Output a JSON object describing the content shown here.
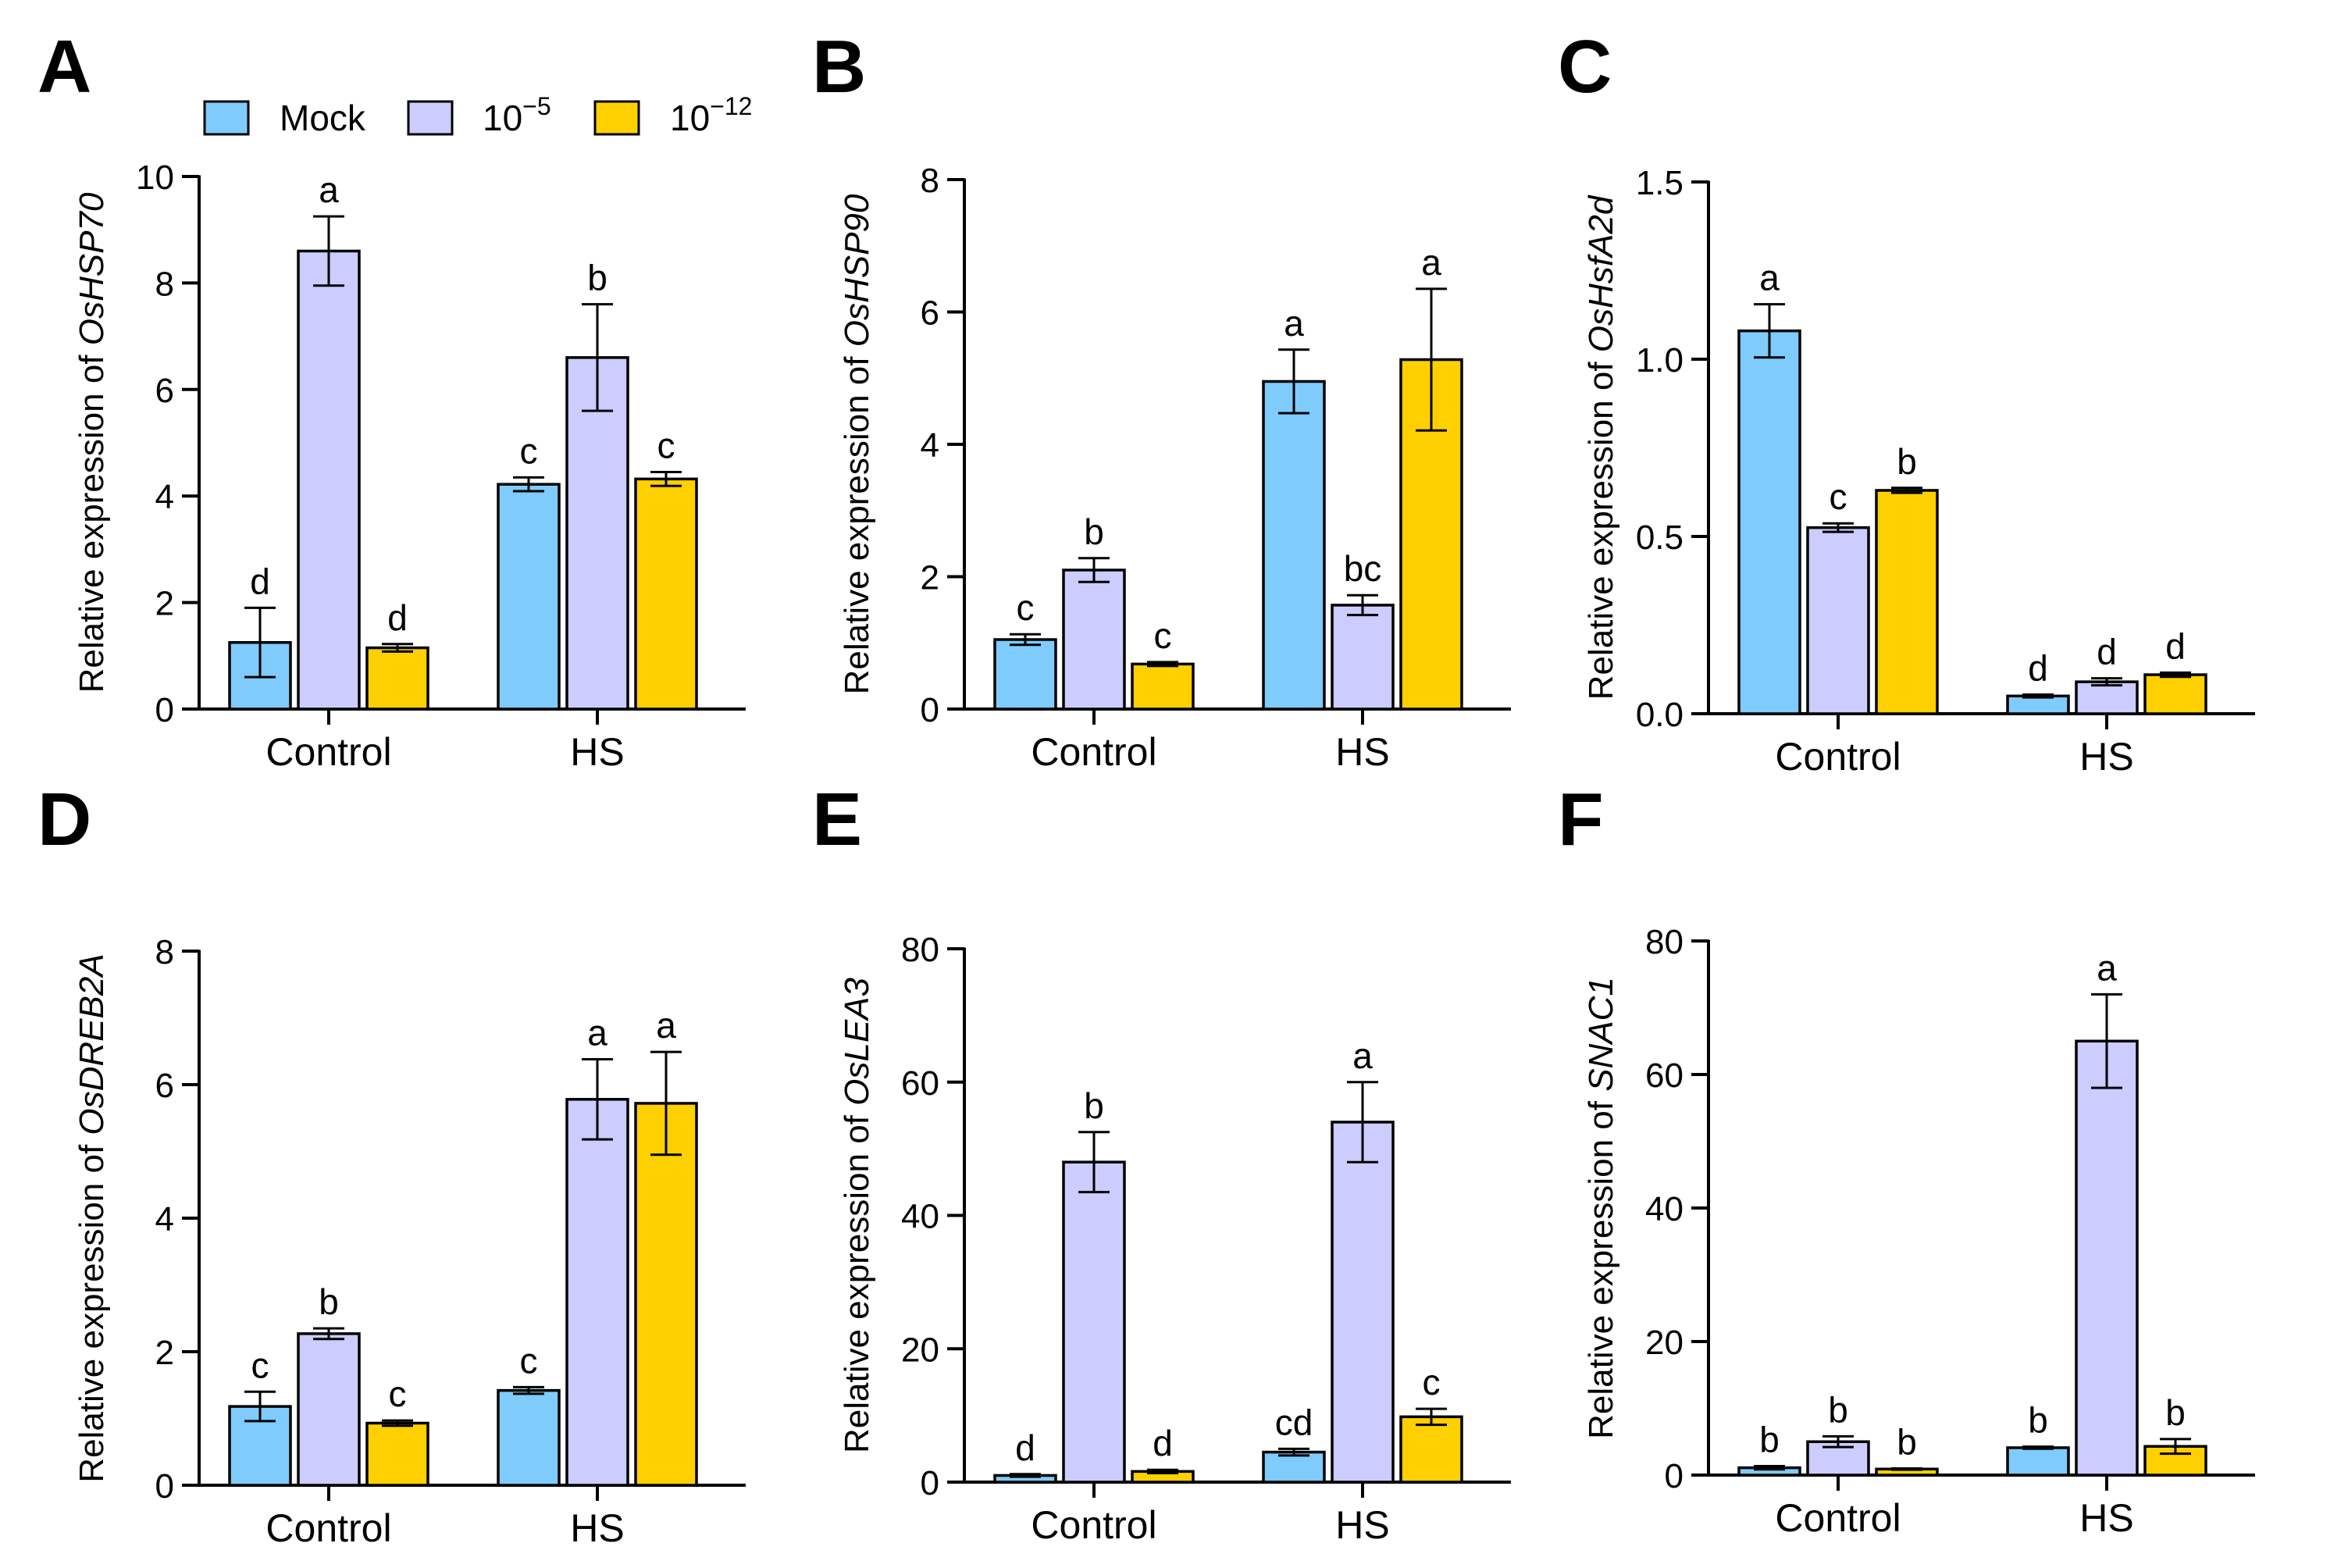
{
  "legend": {
    "items": [
      {
        "label": "Mock",
        "color": "#7FCBFB"
      },
      {
        "label": "10",
        "sup": "−5",
        "color": "#CCCCFF"
      },
      {
        "label": "10",
        "sup": "−12",
        "color": "#FFD000"
      }
    ]
  },
  "chart_data": [
    {
      "panel": "A",
      "type": "bar",
      "ylabel_prefix": "Relative expression of ",
      "gene": "OsHSP70",
      "categories": [
        "Control",
        "HS"
      ],
      "ylim": [
        0,
        10
      ],
      "yticks": [
        "0",
        "2",
        "4",
        "6",
        "8",
        "10"
      ],
      "series": [
        {
          "name": "Mock",
          "values": [
            1.25,
            4.22
          ],
          "errors": [
            0.65,
            0.13
          ],
          "letters": [
            "d",
            "c"
          ]
        },
        {
          "name": "10^-5",
          "values": [
            8.6,
            6.6
          ],
          "errors": [
            0.65,
            1.0
          ],
          "letters": [
            "a",
            "b"
          ]
        },
        {
          "name": "10^-12",
          "values": [
            1.15,
            4.32
          ],
          "errors": [
            0.07,
            0.13
          ],
          "letters": [
            "d",
            "c"
          ]
        }
      ]
    },
    {
      "panel": "B",
      "type": "bar",
      "ylabel_prefix": "Relative expression of ",
      "gene": "OsHSP90",
      "categories": [
        "Control",
        "HS"
      ],
      "ylim": [
        0,
        8
      ],
      "yticks": [
        "0",
        "2",
        "4",
        "6",
        "8"
      ],
      "series": [
        {
          "name": "Mock",
          "values": [
            1.05,
            4.95
          ],
          "errors": [
            0.08,
            0.48
          ],
          "letters": [
            "c",
            "a"
          ]
        },
        {
          "name": "10^-5",
          "values": [
            2.1,
            1.57
          ],
          "errors": [
            0.18,
            0.15
          ],
          "letters": [
            "b",
            "bc"
          ]
        },
        {
          "name": "10^-12",
          "values": [
            0.68,
            5.28
          ],
          "errors": [
            0.03,
            1.07
          ],
          "letters": [
            "c",
            "a"
          ]
        }
      ]
    },
    {
      "panel": "C",
      "type": "bar",
      "ylabel_prefix": "Relative expression of ",
      "gene": "OsHsfA2d",
      "categories": [
        "Control",
        "HS"
      ],
      "ylim": [
        0,
        1.5
      ],
      "yticks": [
        "0.0",
        "0.5",
        "1.0",
        "1.5"
      ],
      "series": [
        {
          "name": "Mock",
          "values": [
            1.08,
            0.05
          ],
          "errors": [
            0.075,
            0.004
          ],
          "letters": [
            "a",
            "d"
          ]
        },
        {
          "name": "10^-5",
          "values": [
            0.525,
            0.09
          ],
          "errors": [
            0.012,
            0.01
          ],
          "letters": [
            "c",
            "d"
          ]
        },
        {
          "name": "10^-12",
          "values": [
            0.63,
            0.11
          ],
          "errors": [
            0.007,
            0.006
          ],
          "letters": [
            "b",
            "d"
          ]
        }
      ]
    },
    {
      "panel": "D",
      "type": "bar",
      "ylabel_prefix": "Relative expression of ",
      "gene": "OsDREB2A",
      "categories": [
        "Control",
        "HS"
      ],
      "ylim": [
        0,
        8
      ],
      "yticks": [
        "0",
        "2",
        "4",
        "6",
        "8"
      ],
      "series": [
        {
          "name": "Mock",
          "values": [
            1.18,
            1.42
          ],
          "errors": [
            0.22,
            0.05
          ],
          "letters": [
            "c",
            "c"
          ]
        },
        {
          "name": "10^-5",
          "values": [
            2.27,
            5.78
          ],
          "errors": [
            0.08,
            0.6
          ],
          "letters": [
            "b",
            "a"
          ]
        },
        {
          "name": "10^-12",
          "values": [
            0.93,
            5.72
          ],
          "errors": [
            0.04,
            0.77
          ],
          "letters": [
            "c",
            "a"
          ]
        }
      ]
    },
    {
      "panel": "E",
      "type": "bar",
      "ylabel_prefix": "Relative expression of ",
      "gene": "OsLEA3",
      "categories": [
        "Control",
        "HS"
      ],
      "ylim": [
        0,
        80
      ],
      "yticks": [
        "0",
        "20",
        "40",
        "60",
        "80"
      ],
      "series": [
        {
          "name": "Mock",
          "values": [
            1.0,
            4.5
          ],
          "errors": [
            0.2,
            0.5
          ],
          "letters": [
            "d",
            "cd"
          ]
        },
        {
          "name": "10^-5",
          "values": [
            48.0,
            54.0
          ],
          "errors": [
            4.5,
            6.0
          ],
          "letters": [
            "b",
            "a"
          ]
        },
        {
          "name": "10^-12",
          "values": [
            1.6,
            9.8
          ],
          "errors": [
            0.25,
            1.2
          ],
          "letters": [
            "d",
            "c"
          ]
        }
      ]
    },
    {
      "panel": "F",
      "type": "bar",
      "ylabel_prefix": "Relative expression of ",
      "gene": "SNAC1",
      "categories": [
        "Control",
        "HS"
      ],
      "ylim": [
        0,
        80
      ],
      "yticks": [
        "0",
        "20",
        "40",
        "60",
        "80"
      ],
      "series": [
        {
          "name": "Mock",
          "values": [
            1.1,
            4.1
          ],
          "errors": [
            0.25,
            0.15
          ],
          "letters": [
            "b",
            "b"
          ]
        },
        {
          "name": "10^-5",
          "values": [
            5.0,
            65.0
          ],
          "errors": [
            0.8,
            7.0
          ],
          "letters": [
            "b",
            "a"
          ]
        },
        {
          "name": "10^-12",
          "values": [
            0.9,
            4.3
          ],
          "errors": [
            0.1,
            1.1
          ],
          "letters": [
            "b",
            "b"
          ]
        }
      ]
    }
  ]
}
